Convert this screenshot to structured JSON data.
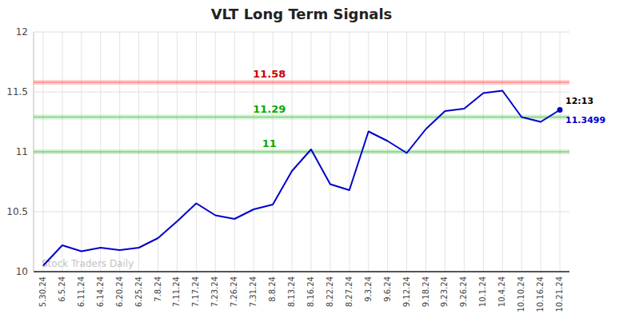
{
  "chart_data": {
    "type": "line",
    "title": "VLT Long Term Signals",
    "categories": [
      "5.30.24",
      "6.5.24",
      "6.11.24",
      "6.14.24",
      "6.20.24",
      "6.25.24",
      "7.8.24",
      "7.11.24",
      "7.17.24",
      "7.23.24",
      "7.26.24",
      "7.31.24",
      "8.8.24",
      "8.13.24",
      "8.16.24",
      "8.22.24",
      "8.27.24",
      "9.3.24",
      "9.6.24",
      "9.12.24",
      "9.18.24",
      "9.23.24",
      "9.26.24",
      "10.1.24",
      "10.4.24",
      "10.10.24",
      "10.16.24",
      "10.21.24"
    ],
    "values": [
      10.05,
      10.22,
      10.17,
      10.2,
      10.18,
      10.2,
      10.28,
      10.42,
      10.57,
      10.47,
      10.44,
      10.52,
      10.56,
      10.84,
      11.02,
      10.73,
      10.68,
      11.17,
      11.09,
      10.99,
      11.19,
      11.34,
      11.36,
      11.49,
      11.51,
      11.29,
      11.25,
      11.3499
    ],
    "value_labels": [
      null,
      null,
      null,
      null,
      null,
      null,
      null,
      null,
      null,
      null,
      null,
      null,
      null,
      null,
      null,
      null,
      null,
      null,
      null,
      null,
      null,
      null,
      null,
      null,
      null,
      null,
      null,
      "11.3499"
    ],
    "data_labels": true,
    "color": "#0000cc",
    "ylim": [
      10.0,
      12.0
    ],
    "yticks": [
      10,
      10.5,
      11,
      11.5,
      12
    ],
    "grid": true,
    "reference_lines": [
      {
        "value": 11.58,
        "label": "11.58",
        "color": "#ff6666",
        "label_color": "#cc0000"
      },
      {
        "value": 11.29,
        "label": "11.29",
        "color": "#66cc66",
        "label_color": "#00aa00"
      },
      {
        "value": 11.0,
        "label": "11",
        "color": "#66cc66",
        "label_color": "#00aa00"
      }
    ],
    "annotations": [
      "12:13"
    ],
    "watermark": "Stock Traders Daily"
  }
}
